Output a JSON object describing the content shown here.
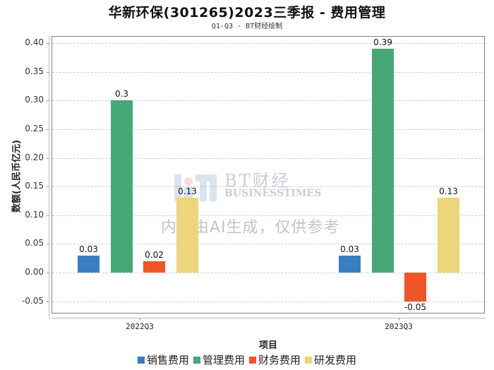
{
  "header": {
    "title": "华新环保(301265)2023三季报 - 费用管理",
    "subtitle": "Q1-Q3 - BT财经绘制"
  },
  "watermark": {
    "brand_cn": "BT财经",
    "brand_en": "BUSINESSTIMES",
    "disclaimer": "内容由AI生成，仅供参考"
  },
  "chart_data": {
    "type": "bar",
    "title": "华新环保(301265)2023三季报 - 费用管理",
    "subtitle": "Q1-Q3 - BT财经绘制",
    "xlabel": "项目",
    "ylabel": "数额(人民币亿元)",
    "categories": [
      "2022Q3",
      "2023Q3"
    ],
    "series": [
      {
        "name": "销售费用",
        "color": "#3a7ebf",
        "values": [
          0.03,
          0.03
        ],
        "labels": [
          "0.03",
          "0.03"
        ]
      },
      {
        "name": "管理费用",
        "color": "#45a876",
        "values": [
          0.3,
          0.39
        ],
        "labels": [
          "0.3",
          "0.39"
        ]
      },
      {
        "name": "财务费用",
        "color": "#ef5627",
        "values": [
          0.02,
          -0.05
        ],
        "labels": [
          "0.02",
          "-0.05"
        ]
      },
      {
        "name": "研发费用",
        "color": "#ecd57a",
        "values": [
          0.13,
          0.13
        ],
        "labels": [
          "0.13",
          "0.13"
        ]
      }
    ],
    "yticks": [
      "0.40",
      "0.35",
      "0.30",
      "0.25",
      "0.20",
      "0.15",
      "0.10",
      "0.05",
      "0.00",
      "-0.05"
    ],
    "ylim": [
      -0.06,
      0.41
    ],
    "grid": true,
    "legend_position": "bottom"
  }
}
